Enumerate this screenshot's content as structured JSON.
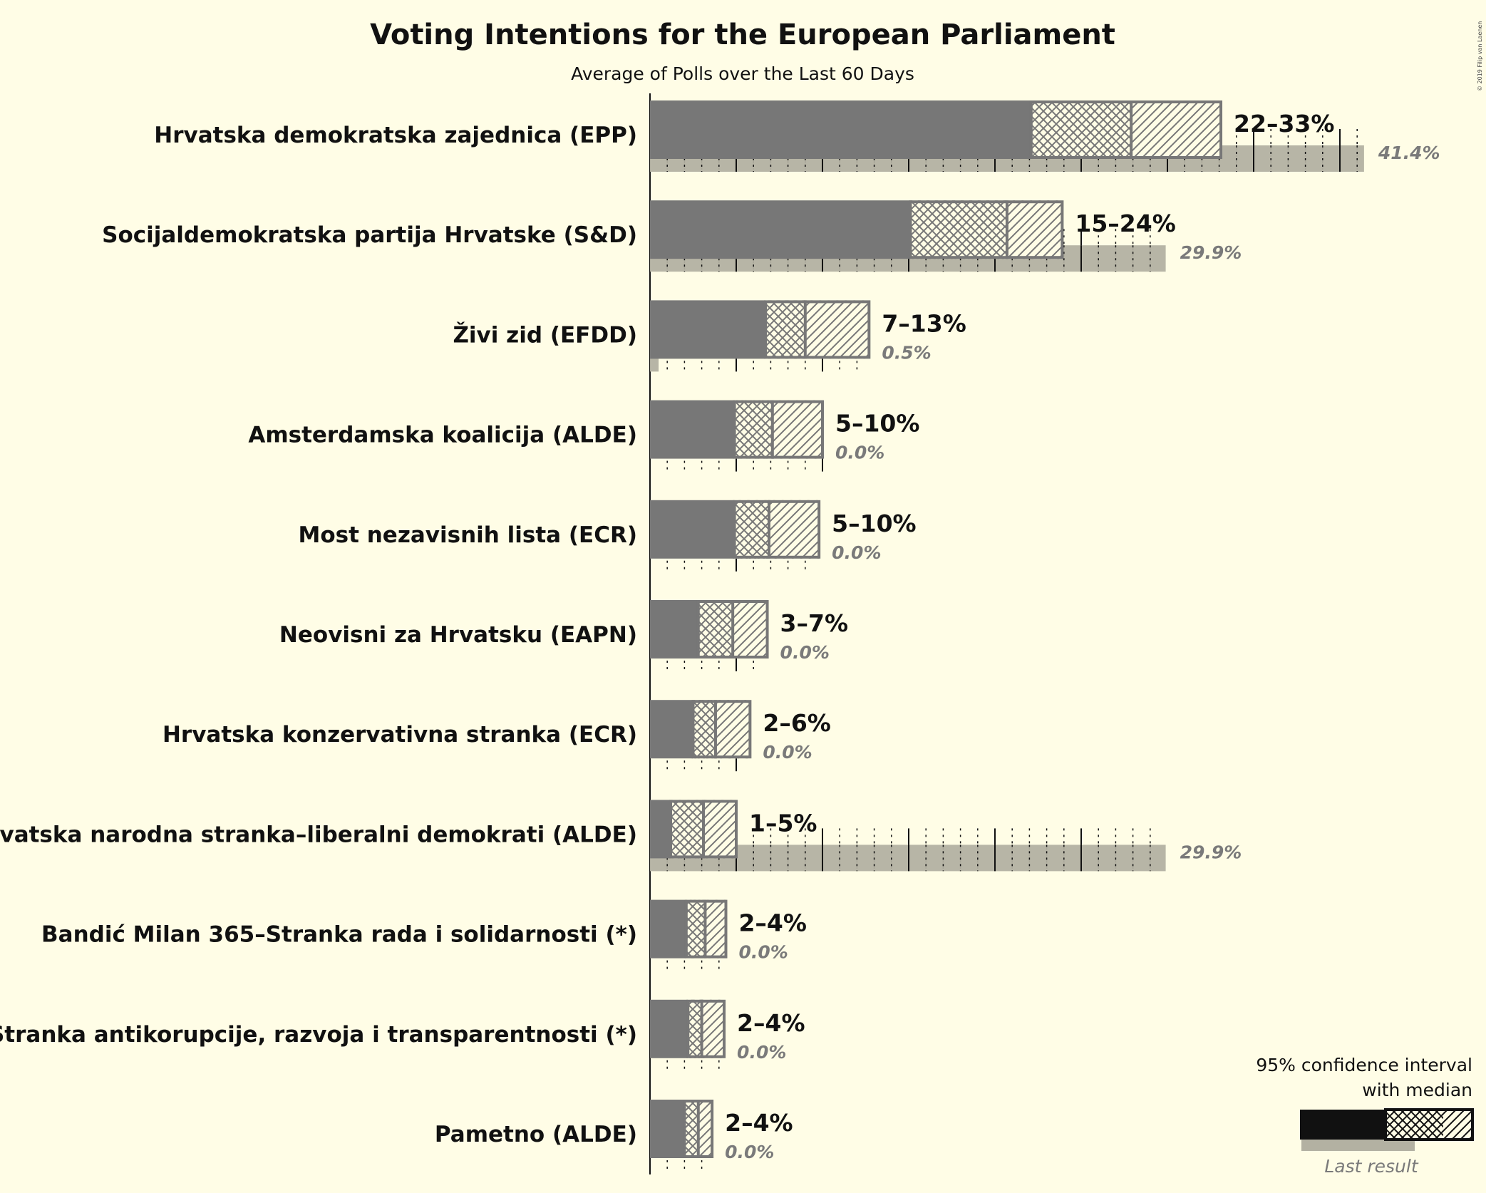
{
  "chart_data": {
    "type": "bar",
    "title": "Voting Intentions for the European Parliament",
    "subtitle": "Average of Polls over the Last 60 Days",
    "copyright": "© 2019 Filip van Laenen",
    "xlim": [
      0,
      45
    ],
    "colors": {
      "bar": "#777777",
      "last": "#b3b1a2",
      "dark": "#111111",
      "background": "#fffde6"
    },
    "parties": [
      {
        "name": "Hrvatska demokratska zajednica (EPP)",
        "low": 22,
        "q_low": 22.1,
        "median": 27.9,
        "q_high": 29.5,
        "high": 33.1,
        "range_label": "22–33%",
        "last": 41.4,
        "last_label": "41.4%"
      },
      {
        "name": "Socijaldemokratska partija Hrvatske (S&D)",
        "low": 15,
        "q_low": 15.1,
        "median": 20.7,
        "q_high": 20.8,
        "high": 23.9,
        "range_label": "15–24%",
        "last": 29.9,
        "last_label": "29.9%"
      },
      {
        "name": "Živi zid (EFDD)",
        "low": 7,
        "q_low": 6.7,
        "median": 9.0,
        "q_high": 9.1,
        "high": 12.7,
        "range_label": "7–13%",
        "last": 0.5,
        "last_label": "0.5%"
      },
      {
        "name": "Amsterdamska koalicija (ALDE)",
        "low": 5,
        "q_low": 4.9,
        "median": 7.1,
        "q_high": 7.2,
        "high": 10.0,
        "range_label": "5–10%",
        "last": 0.0,
        "last_label": "0.0%"
      },
      {
        "name": "Most nezavisnih lista (ECR)",
        "low": 5,
        "q_low": 4.9,
        "median": 6.9,
        "q_high": 7.0,
        "high": 9.8,
        "range_label": "5–10%",
        "last": 0.0,
        "last_label": "0.0%"
      },
      {
        "name": "Neovisni za Hrvatsku (EAPN)",
        "low": 3,
        "q_low": 2.8,
        "median": 4.8,
        "q_high": 4.9,
        "high": 6.8,
        "range_label": "3–7%",
        "last": 0.0,
        "last_label": "0.0%"
      },
      {
        "name": "Hrvatska konzervativna stranka (ECR)",
        "low": 2,
        "q_low": 2.5,
        "median": 3.8,
        "q_high": 3.9,
        "high": 5.8,
        "range_label": "2–6%",
        "last": 0.0,
        "last_label": "0.0%"
      },
      {
        "name": "Hrvatska narodna stranka–liberalni demokrati (ALDE)",
        "low": 1,
        "q_low": 1.2,
        "median": 3.1,
        "q_high": 3.2,
        "high": 5.0,
        "range_label": "1–5%",
        "last": 29.9,
        "last_label": "29.9%"
      },
      {
        "name": "Bandić Milan 365–Stranka rada i solidarnosti (*)",
        "low": 2,
        "q_low": 2.1,
        "median": 3.2,
        "q_high": 3.3,
        "high": 4.4,
        "range_label": "2–4%",
        "last": 0.0,
        "last_label": "0.0%"
      },
      {
        "name": "Stranka antikorupcije, razvoja i transparentnosti (*)",
        "low": 2,
        "q_low": 2.2,
        "median": 3.0,
        "q_high": 3.1,
        "high": 4.3,
        "range_label": "2–4%",
        "last": 0.0,
        "last_label": "0.0%"
      },
      {
        "name": "Pametno (ALDE)",
        "low": 2,
        "q_low": 2.0,
        "median": 2.8,
        "q_high": 2.9,
        "high": 3.6,
        "range_label": "2–4%",
        "last": 0.0,
        "last_label": "0.0%"
      }
    ],
    "legend": {
      "title_line1": "95% confidence interval",
      "title_line2": "with median",
      "last_result": "Last result"
    }
  }
}
